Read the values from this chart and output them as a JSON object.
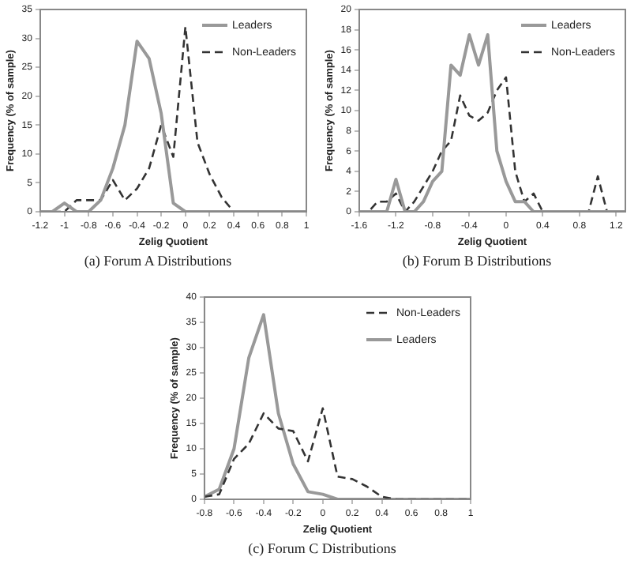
{
  "chart_data": [
    {
      "type": "line",
      "xlabel": "Zelig Quotient",
      "ylabel": "Frequency (% of sample)",
      "annotations": [
        "(a) Forum A Distributions"
      ],
      "x": [
        -1.2,
        -1.1,
        -1,
        -0.9,
        -0.8,
        -0.7,
        -0.6,
        -0.5,
        -0.4,
        -0.3,
        -0.2,
        -0.1,
        0,
        0.1,
        0.2,
        0.3,
        0.4,
        0.5,
        0.6,
        0.7,
        0.8,
        0.9,
        1
      ],
      "xlim": [
        -1.2,
        1
      ],
      "xticks": [
        -1.2,
        -1,
        -0.8,
        -0.6,
        -0.4,
        -0.2,
        0,
        0.2,
        0.4,
        0.6,
        0.8,
        1
      ],
      "ylim": [
        0,
        35
      ],
      "yticks": [
        0,
        5,
        10,
        15,
        20,
        25,
        30,
        35
      ],
      "grid": false,
      "legend": "top right",
      "marker": "none",
      "series": [
        {
          "name": "Leaders",
          "color": "#999999",
          "line_style": "solid",
          "values": [
            0,
            0,
            1.5,
            0,
            0,
            2,
            7.5,
            15,
            29.5,
            26.5,
            17,
            1.5,
            0,
            0,
            0,
            0,
            0,
            0,
            0,
            0,
            0,
            0,
            0
          ]
        },
        {
          "name": "Non-Leaders",
          "color": "#333333",
          "line_style": "dashed",
          "values": [
            0,
            0,
            0,
            2,
            2,
            2,
            5.5,
            2,
            4,
            7.5,
            15,
            9.5,
            32,
            12,
            6.5,
            2.5,
            0,
            0,
            0,
            0,
            0,
            0,
            0
          ]
        }
      ]
    },
    {
      "type": "line",
      "xlabel": "Zelig Quotient",
      "ylabel": "Frequency (% of sample)",
      "annotations": [
        "(b) Forum B Distributions"
      ],
      "x": [
        -1.6,
        -1.5,
        -1.4,
        -1.3,
        -1.2,
        -1.1,
        -1,
        -0.9,
        -0.8,
        -0.7,
        -0.6,
        -0.5,
        -0.4,
        -0.3,
        -0.2,
        -0.1,
        0,
        0.1,
        0.2,
        0.3,
        0.4,
        0.5,
        0.6,
        0.7,
        0.8,
        0.9,
        1,
        1.1,
        1.2,
        1.3
      ],
      "xlim": [
        -1.6,
        1.3
      ],
      "xticks": [
        -1.6,
        -1.2,
        -0.8,
        -0.4,
        0,
        0.4,
        0.8,
        1.2
      ],
      "ylim": [
        0,
        20
      ],
      "yticks": [
        0,
        2,
        4,
        6,
        8,
        10,
        12,
        14,
        16,
        18,
        20
      ],
      "grid": false,
      "legend": "top right",
      "marker": "none",
      "series": [
        {
          "name": "Leaders",
          "color": "#999999",
          "line_style": "solid",
          "values": [
            0,
            0,
            0,
            0,
            3.2,
            0,
            0,
            1,
            3,
            4,
            14.5,
            13.5,
            17.5,
            14.5,
            17.5,
            6,
            3,
            1,
            1,
            0,
            0,
            0,
            0,
            0,
            0,
            0,
            0,
            0,
            0,
            0
          ]
        },
        {
          "name": "Non-Leaders",
          "color": "#333333",
          "line_style": "dashed",
          "values": [
            0,
            0,
            1,
            1,
            1.8,
            0,
            1,
            2.5,
            4,
            6,
            7,
            11.5,
            9.5,
            9,
            9.8,
            12,
            13.3,
            4,
            1,
            1.8,
            0,
            0,
            0,
            0,
            0,
            0,
            3.5,
            0,
            0,
            0
          ]
        }
      ]
    },
    {
      "type": "line",
      "xlabel": "Zelig Quotient",
      "ylabel": "Frequency (% of sample)",
      "annotations": [
        "(c) Forum C Distributions"
      ],
      "x": [
        -0.8,
        -0.7,
        -0.6,
        -0.5,
        -0.4,
        -0.3,
        -0.2,
        -0.1,
        0,
        0.1,
        0.2,
        0.3,
        0.4,
        0.5,
        0.6,
        0.7,
        0.8,
        0.9,
        1
      ],
      "xlim": [
        -0.8,
        1
      ],
      "xticks": [
        -0.8,
        -0.6,
        -0.4,
        -0.2,
        0,
        0.2,
        0.4,
        0.6,
        0.8,
        1
      ],
      "ylim": [
        0,
        40
      ],
      "yticks": [
        0,
        5,
        10,
        15,
        20,
        25,
        30,
        35,
        40
      ],
      "grid": false,
      "legend": "top right",
      "marker": "none",
      "series": [
        {
          "name": "Non-Leaders",
          "color": "#333333",
          "line_style": "dashed",
          "values": [
            0.5,
            1,
            8,
            11,
            17,
            14,
            13.5,
            7.5,
            18,
            4.5,
            4,
            2.5,
            0.5,
            0,
            0,
            0,
            0,
            0,
            0
          ]
        },
        {
          "name": "Leaders",
          "color": "#999999",
          "line_style": "solid",
          "values": [
            0.5,
            2,
            10,
            28,
            36.5,
            17,
            7,
            1.5,
            1,
            0,
            0,
            0,
            0,
            0,
            0,
            0,
            0,
            0,
            0
          ]
        }
      ]
    }
  ]
}
